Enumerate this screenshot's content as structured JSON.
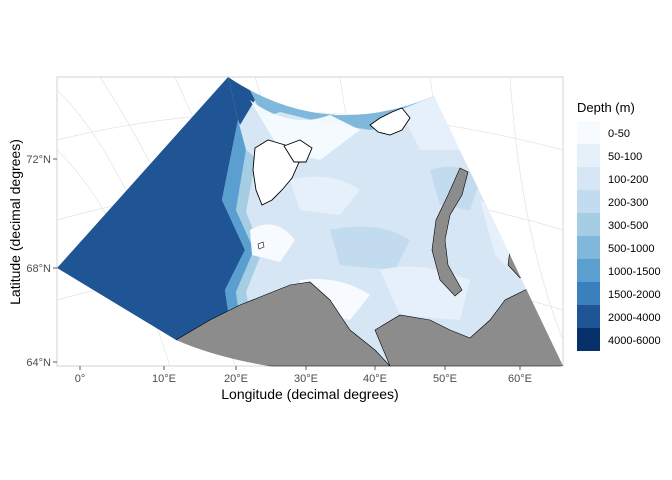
{
  "map": {
    "xlabel": "Longitude (decimal degrees)",
    "ylabel": "Latitude (decimal degrees)",
    "x_ticks": [
      "0°",
      "10°E",
      "20°E",
      "30°E",
      "40°E",
      "50°E",
      "60°E"
    ],
    "y_ticks": [
      "72°N",
      "68°N",
      "64°N"
    ],
    "land_color": "#8c8c8c",
    "legend": {
      "title": "Depth (m)",
      "items": [
        {
          "label": "0-50",
          "color": "#f7fbff"
        },
        {
          "label": "50-100",
          "color": "#e6f0fa"
        },
        {
          "label": "100-200",
          "color": "#d6e6f4"
        },
        {
          "label": "200-300",
          "color": "#c2dbee"
        },
        {
          "label": "300-500",
          "color": "#a5cde3"
        },
        {
          "label": "500-1000",
          "color": "#80b8dc"
        },
        {
          "label": "1000-1500",
          "color": "#5a9fcf"
        },
        {
          "label": "1500-2000",
          "color": "#3a80bd"
        },
        {
          "label": "2000-4000",
          "color": "#1f5594"
        },
        {
          "label": "4000-6000",
          "color": "#08306b"
        }
      ]
    }
  }
}
